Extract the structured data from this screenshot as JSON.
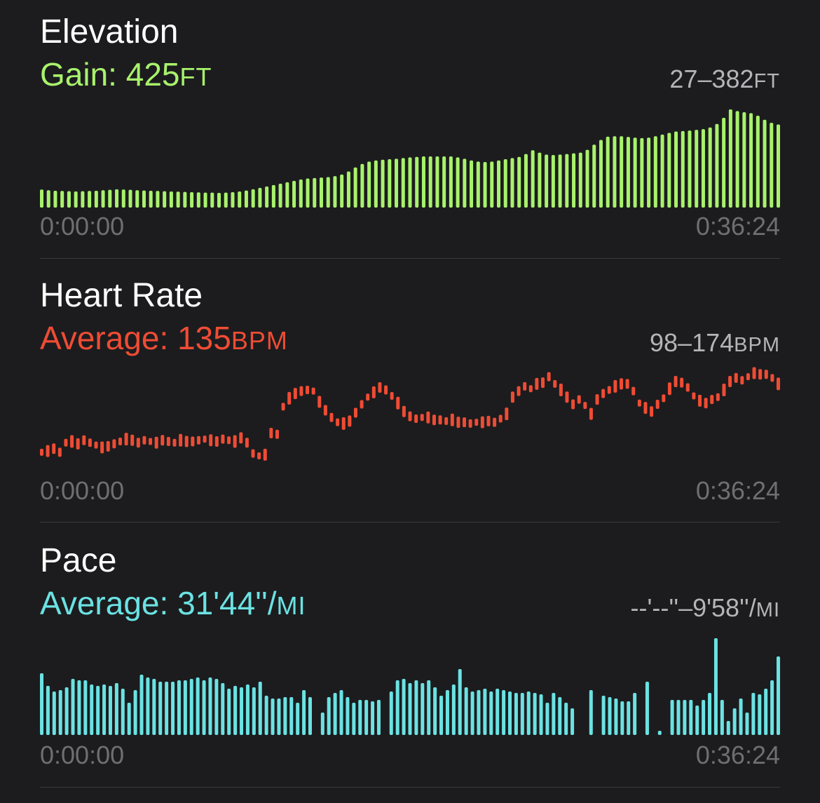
{
  "colors": {
    "background": "#1c1c1e",
    "elevation": "#a8f26c",
    "heart_rate": "#ef4c34",
    "pace": "#6be2e3",
    "secondary_text": "#b4b4b9",
    "axis_text": "#6e6e73",
    "divider": "#3a3a3c"
  },
  "elevation": {
    "title": "Elevation",
    "summary_label": "Gain: ",
    "summary_value": "425",
    "summary_unit": "FT",
    "range_value": "27–382",
    "range_unit": "FT",
    "time_start": "0:00:00",
    "time_end": "0:36:24"
  },
  "heart_rate": {
    "title": "Heart Rate",
    "summary_label": "Average: ",
    "summary_value": "135",
    "summary_unit": "BPM",
    "range_value": "98–174",
    "range_unit": "BPM",
    "time_start": "0:00:00",
    "time_end": "0:36:24"
  },
  "pace": {
    "title": "Pace",
    "summary_label": "Average: ",
    "summary_value": "31'44''/",
    "summary_unit": "MI",
    "range_value": "--'--''–9'58''/",
    "range_unit": "MI",
    "time_start": "0:00:00",
    "time_end": "0:36:24"
  },
  "chart_data": [
    {
      "type": "bar",
      "name": "elevation",
      "ylim": [
        0,
        382
      ],
      "values": [
        41,
        38,
        36,
        35,
        34,
        33,
        34,
        35,
        36,
        38,
        40,
        42,
        41,
        40,
        38,
        37,
        36,
        35,
        34,
        33,
        32,
        31,
        30,
        29,
        28,
        28,
        27,
        28,
        30,
        33,
        37,
        42,
        48,
        54,
        60,
        66,
        72,
        78,
        84,
        88,
        90,
        92,
        94,
        98,
        105,
        118,
        135,
        150,
        160,
        165,
        168,
        170,
        172,
        175,
        178,
        180,
        182,
        182,
        182,
        182,
        182,
        178,
        172,
        165,
        160,
        158,
        160,
        165,
        170,
        175,
        180,
        192,
        208,
        198,
        190,
        188,
        190,
        192,
        195,
        198,
        210,
        232,
        252,
        266,
        268,
        268,
        265,
        262,
        260,
        262,
        268,
        275,
        282,
        288,
        290,
        292,
        295,
        298,
        305,
        320,
        346,
        382,
        375,
        370,
        366,
        355,
        338,
        325,
        318
      ]
    },
    {
      "type": "bar",
      "name": "heart_rate",
      "ylim": [
        98,
        174
      ],
      "values": [
        108,
        109,
        111,
        108,
        116,
        117,
        115,
        118,
        116,
        114,
        112,
        113,
        115,
        117,
        119,
        118,
        116,
        118,
        117,
        116,
        118,
        117,
        116,
        118,
        117,
        117,
        118,
        119,
        118,
        117,
        119,
        118,
        117,
        120,
        116,
        107,
        105,
        106,
        124,
        123,
        146,
        153,
        157,
        159,
        160,
        159,
        150,
        143,
        137,
        133,
        132,
        134,
        141,
        148,
        154,
        158,
        162,
        160,
        155,
        149,
        142,
        138,
        136,
        137,
        137,
        135,
        135,
        134,
        135,
        133,
        133,
        132,
        133,
        133,
        134,
        133,
        136,
        140,
        154,
        159,
        163,
        161,
        165,
        166,
        171,
        165,
        160,
        154,
        148,
        152,
        147,
        140,
        152,
        157,
        160,
        163,
        165,
        165,
        159,
        149,
        145,
        142,
        148,
        153,
        161,
        167,
        166,
        162,
        155,
        151,
        149,
        152,
        154,
        160,
        167,
        170,
        168,
        171,
        174,
        173,
        173,
        170,
        165
      ]
    },
    {
      "type": "bar",
      "name": "pace",
      "values": [
        88,
        70,
        62,
        64,
        68,
        80,
        78,
        78,
        72,
        70,
        72,
        70,
        74,
        66,
        46,
        64,
        86,
        82,
        80,
        76,
        76,
        76,
        78,
        78,
        80,
        82,
        78,
        82,
        80,
        74,
        66,
        70,
        68,
        72,
        68,
        76,
        56,
        52,
        52,
        54,
        54,
        46,
        64,
        54,
        0,
        32,
        54,
        60,
        64,
        54,
        46,
        50,
        50,
        48,
        50,
        0,
        62,
        78,
        80,
        74,
        78,
        74,
        78,
        68,
        56,
        64,
        72,
        94,
        68,
        62,
        64,
        66,
        62,
        66,
        64,
        62,
        60,
        60,
        62,
        60,
        58,
        46,
        60,
        54,
        46,
        38,
        0,
        0,
        64,
        0,
        56,
        54,
        52,
        48,
        48,
        60,
        0,
        76,
        0,
        6,
        0,
        50,
        50,
        50,
        50,
        42,
        50,
        60,
        138,
        50,
        20,
        38,
        52,
        32,
        60,
        58,
        66,
        78,
        112
      ]
    }
  ]
}
